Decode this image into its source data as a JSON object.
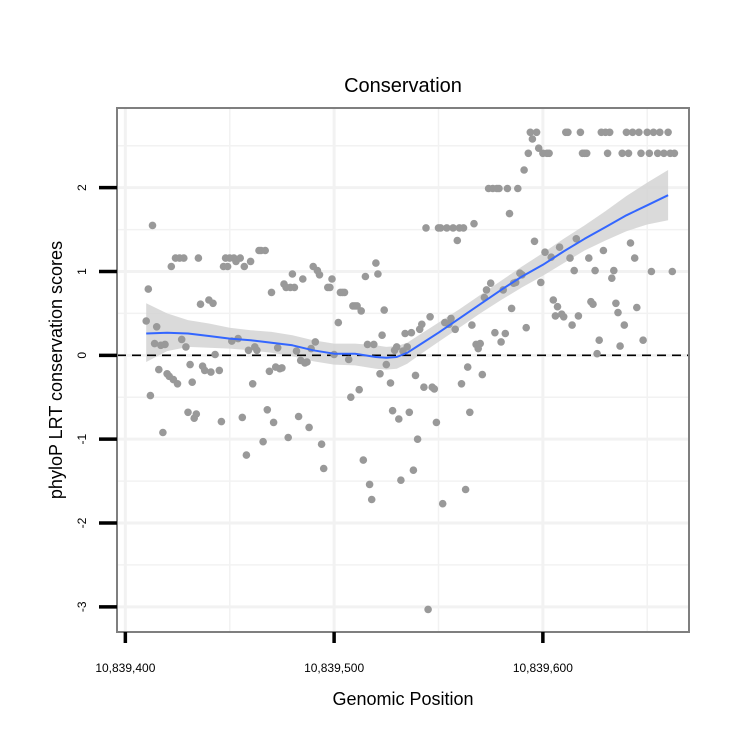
{
  "chart_data": {
    "type": "scatter",
    "title": "Conservation",
    "xlabel": "Genomic Position",
    "ylabel": "phyloP LRT conservation scores",
    "xlim": [
      10839396,
      10839670
    ],
    "ylim": [
      -3.3,
      2.95
    ],
    "x_ticks": [
      10839400,
      10839500,
      10839600
    ],
    "x_tick_labels": [
      "10,839,400",
      "10,839,500",
      "10,839,600"
    ],
    "y_ticks": [
      -3,
      -2,
      -1,
      0,
      1,
      2
    ],
    "y_tick_labels": [
      "-3",
      "-2",
      "-1",
      "0",
      "1",
      "2"
    ],
    "grid": true,
    "reference_line": {
      "y": 0,
      "style": "dashed"
    },
    "colors": {
      "points": "#999999",
      "smooth": "#3366ff",
      "ribbon": "#d3d3d3",
      "frame": "#7f7f7f",
      "grid": "#f2f2f2",
      "refline": "#000000"
    },
    "points": [
      [
        10839410,
        0.41
      ],
      [
        10839411,
        0.79
      ],
      [
        10839412,
        -0.48
      ],
      [
        10839413,
        1.55
      ],
      [
        10839414,
        0.14
      ],
      [
        10839415,
        0.34
      ],
      [
        10839416,
        -0.17
      ],
      [
        10839417,
        0.12
      ],
      [
        10839418,
        -0.92
      ],
      [
        10839419,
        0.13
      ],
      [
        10839420,
        -0.22
      ],
      [
        10839421,
        -0.25
      ],
      [
        10839422,
        1.06
      ],
      [
        10839423,
        -0.29
      ],
      [
        10839424,
        1.16
      ],
      [
        10839425,
        -0.34
      ],
      [
        10839426,
        1.16
      ],
      [
        10839427,
        0.19
      ],
      [
        10839428,
        1.16
      ],
      [
        10839429,
        0.1
      ],
      [
        10839430,
        -0.68
      ],
      [
        10839431,
        -0.11
      ],
      [
        10839432,
        -0.32
      ],
      [
        10839433,
        -0.75
      ],
      [
        10839434,
        -0.7
      ],
      [
        10839435,
        1.16
      ],
      [
        10839436,
        0.61
      ],
      [
        10839437,
        -0.13
      ],
      [
        10839438,
        -0.18
      ],
      [
        10839440,
        0.66
      ],
      [
        10839441,
        -0.2
      ],
      [
        10839442,
        0.62
      ],
      [
        10839443,
        0.01
      ],
      [
        10839445,
        -0.18
      ],
      [
        10839446,
        -0.79
      ],
      [
        10839447,
        1.06
      ],
      [
        10839448,
        1.16
      ],
      [
        10839449,
        1.06
      ],
      [
        10839450,
        1.16
      ],
      [
        10839451,
        0.17
      ],
      [
        10839452,
        1.16
      ],
      [
        10839453,
        1.12
      ],
      [
        10839454,
        0.2
      ],
      [
        10839455,
        1.16
      ],
      [
        10839456,
        -0.74
      ],
      [
        10839457,
        1.06
      ],
      [
        10839458,
        -1.19
      ],
      [
        10839459,
        0.06
      ],
      [
        10839460,
        1.12
      ],
      [
        10839461,
        -0.34
      ],
      [
        10839462,
        0.1
      ],
      [
        10839463,
        0.06
      ],
      [
        10839464,
        1.25
      ],
      [
        10839465,
        1.25
      ],
      [
        10839466,
        -1.03
      ],
      [
        10839467,
        1.25
      ],
      [
        10839468,
        -0.65
      ],
      [
        10839469,
        -0.19
      ],
      [
        10839470,
        0.75
      ],
      [
        10839471,
        -0.8
      ],
      [
        10839472,
        -0.14
      ],
      [
        10839473,
        0.09
      ],
      [
        10839474,
        -0.16
      ],
      [
        10839475,
        -0.15
      ],
      [
        10839476,
        0.85
      ],
      [
        10839477,
        0.81
      ],
      [
        10839478,
        -0.98
      ],
      [
        10839479,
        0.81
      ],
      [
        10839480,
        0.97
      ],
      [
        10839481,
        0.81
      ],
      [
        10839482,
        0.05
      ],
      [
        10839483,
        -0.73
      ],
      [
        10839484,
        -0.06
      ],
      [
        10839485,
        0.91
      ],
      [
        10839486,
        -0.09
      ],
      [
        10839487,
        -0.08
      ],
      [
        10839488,
        -0.86
      ],
      [
        10839489,
        0.08
      ],
      [
        10839490,
        1.06
      ],
      [
        10839491,
        0.16
      ],
      [
        10839492,
        1.01
      ],
      [
        10839493,
        0.96
      ],
      [
        10839494,
        -1.06
      ],
      [
        10839495,
        -1.35
      ],
      [
        10839497,
        0.81
      ],
      [
        10839498,
        0.81
      ],
      [
        10839499,
        0.91
      ],
      [
        10839500,
        0.01
      ],
      [
        10839502,
        0.39
      ],
      [
        10839503,
        0.75
      ],
      [
        10839504,
        0.75
      ],
      [
        10839505,
        0.75
      ],
      [
        10839507,
        -0.05
      ],
      [
        10839508,
        -0.5
      ],
      [
        10839509,
        0.59
      ],
      [
        10839510,
        0.59
      ],
      [
        10839511,
        0.59
      ],
      [
        10839512,
        -0.41
      ],
      [
        10839513,
        0.53
      ],
      [
        10839514,
        -1.25
      ],
      [
        10839515,
        0.94
      ],
      [
        10839516,
        0.13
      ],
      [
        10839517,
        -1.54
      ],
      [
        10839518,
        -1.72
      ],
      [
        10839519,
        0.13
      ],
      [
        10839520,
        1.1
      ],
      [
        10839521,
        0.97
      ],
      [
        10839522,
        -0.22
      ],
      [
        10839523,
        0.24
      ],
      [
        10839524,
        0.54
      ],
      [
        10839525,
        -0.11
      ],
      [
        10839527,
        -0.33
      ],
      [
        10839528,
        -0.66
      ],
      [
        10839529,
        0.06
      ],
      [
        10839530,
        0.1
      ],
      [
        10839531,
        -0.76
      ],
      [
        10839532,
        -1.49
      ],
      [
        10839533,
        0.05
      ],
      [
        10839534,
        0.26
      ],
      [
        10839535,
        0.1
      ],
      [
        10839536,
        -0.68
      ],
      [
        10839537,
        0.27
      ],
      [
        10839538,
        -1.37
      ],
      [
        10839539,
        -0.24
      ],
      [
        10839540,
        -1.0
      ],
      [
        10839541,
        0.31
      ],
      [
        10839542,
        0.37
      ],
      [
        10839543,
        -0.38
      ],
      [
        10839544,
        1.52
      ],
      [
        10839545,
        -3.03
      ],
      [
        10839546,
        0.46
      ],
      [
        10839547,
        -0.38
      ],
      [
        10839548,
        -0.4
      ],
      [
        10839549,
        -0.8
      ],
      [
        10839550,
        1.52
      ],
      [
        10839551,
        1.52
      ],
      [
        10839552,
        -1.77
      ],
      [
        10839553,
        0.39
      ],
      [
        10839554,
        1.52
      ],
      [
        10839555,
        0.37
      ],
      [
        10839556,
        0.44
      ],
      [
        10839557,
        1.52
      ],
      [
        10839558,
        0.31
      ],
      [
        10839559,
        1.37
      ],
      [
        10839560,
        1.52
      ],
      [
        10839561,
        -0.34
      ],
      [
        10839562,
        1.52
      ],
      [
        10839563,
        -1.6
      ],
      [
        10839564,
        -0.14
      ],
      [
        10839565,
        -0.68
      ],
      [
        10839566,
        0.36
      ],
      [
        10839567,
        1.57
      ],
      [
        10839568,
        0.13
      ],
      [
        10839569,
        0.08
      ],
      [
        10839570,
        0.14
      ],
      [
        10839571,
        -0.23
      ],
      [
        10839572,
        0.69
      ],
      [
        10839573,
        0.78
      ],
      [
        10839574,
        1.99
      ],
      [
        10839575,
        0.86
      ],
      [
        10839576,
        1.99
      ],
      [
        10839577,
        0.27
      ],
      [
        10839578,
        1.99
      ],
      [
        10839579,
        1.99
      ],
      [
        10839580,
        0.16
      ],
      [
        10839581,
        0.78
      ],
      [
        10839582,
        0.26
      ],
      [
        10839583,
        1.99
      ],
      [
        10839584,
        1.69
      ],
      [
        10839585,
        0.56
      ],
      [
        10839586,
        0.86
      ],
      [
        10839587,
        0.87
      ],
      [
        10839588,
        1.99
      ],
      [
        10839589,
        0.98
      ],
      [
        10839590,
        0.96
      ],
      [
        10839591,
        2.21
      ],
      [
        10839592,
        0.33
      ],
      [
        10839593,
        2.41
      ],
      [
        10839594,
        2.66
      ],
      [
        10839595,
        2.58
      ],
      [
        10839596,
        1.36
      ],
      [
        10839597,
        2.66
      ],
      [
        10839598,
        2.47
      ],
      [
        10839599,
        0.87
      ],
      [
        10839600,
        2.41
      ],
      [
        10839601,
        1.23
      ],
      [
        10839602,
        2.41
      ],
      [
        10839603,
        2.41
      ],
      [
        10839604,
        1.17
      ],
      [
        10839605,
        0.66
      ],
      [
        10839606,
        0.47
      ],
      [
        10839607,
        0.58
      ],
      [
        10839608,
        1.29
      ],
      [
        10839609,
        0.49
      ],
      [
        10839610,
        0.46
      ],
      [
        10839611,
        2.66
      ],
      [
        10839612,
        2.66
      ],
      [
        10839613,
        1.16
      ],
      [
        10839614,
        0.36
      ],
      [
        10839615,
        1.01
      ],
      [
        10839616,
        1.39
      ],
      [
        10839617,
        0.47
      ],
      [
        10839618,
        2.66
      ],
      [
        10839619,
        2.41
      ],
      [
        10839620,
        2.41
      ],
      [
        10839621,
        2.41
      ],
      [
        10839622,
        1.16
      ],
      [
        10839623,
        0.64
      ],
      [
        10839624,
        0.61
      ],
      [
        10839625,
        1.01
      ],
      [
        10839626,
        0.02
      ],
      [
        10839627,
        0.18
      ],
      [
        10839628,
        2.66
      ],
      [
        10839629,
        1.25
      ],
      [
        10839630,
        2.66
      ],
      [
        10839631,
        2.41
      ],
      [
        10839632,
        2.66
      ],
      [
        10839633,
        0.92
      ],
      [
        10839634,
        1.01
      ],
      [
        10839635,
        0.62
      ],
      [
        10839636,
        0.51
      ],
      [
        10839637,
        0.11
      ],
      [
        10839638,
        2.41
      ],
      [
        10839639,
        0.36
      ],
      [
        10839640,
        2.66
      ],
      [
        10839641,
        2.41
      ],
      [
        10839642,
        1.34
      ],
      [
        10839643,
        2.66
      ],
      [
        10839644,
        1.16
      ],
      [
        10839645,
        0.57
      ],
      [
        10839646,
        2.66
      ],
      [
        10839647,
        2.41
      ],
      [
        10839648,
        0.18
      ],
      [
        10839650,
        2.66
      ],
      [
        10839651,
        2.41
      ],
      [
        10839652,
        1.0
      ],
      [
        10839653,
        2.66
      ],
      [
        10839655,
        2.41
      ],
      [
        10839656,
        2.66
      ],
      [
        10839658,
        2.41
      ],
      [
        10839660,
        2.66
      ],
      [
        10839661,
        2.41
      ],
      [
        10839662,
        1.0
      ],
      [
        10839663,
        2.41
      ]
    ],
    "smooth_fit": {
      "x": [
        10839410,
        10839420,
        10839430,
        10839440,
        10839450,
        10839460,
        10839470,
        10839480,
        10839490,
        10839500,
        10839510,
        10839520,
        10839525,
        10839530,
        10839535,
        10839540,
        10839550,
        10839560,
        10839570,
        10839580,
        10839590,
        10839600,
        10839610,
        10839620,
        10839630,
        10839640,
        10839650,
        10839660
      ],
      "y": [
        0.26,
        0.27,
        0.26,
        0.23,
        0.2,
        0.18,
        0.15,
        0.12,
        0.06,
        0.02,
        0.02,
        -0.02,
        -0.03,
        -0.02,
        0.03,
        0.11,
        0.27,
        0.44,
        0.61,
        0.78,
        0.94,
        1.08,
        1.24,
        1.39,
        1.53,
        1.67,
        1.79,
        1.91
      ],
      "lower": [
        -0.08,
        0.05,
        0.1,
        0.09,
        0.08,
        0.06,
        0.03,
        -0.01,
        -0.07,
        -0.11,
        -0.12,
        -0.16,
        -0.17,
        -0.16,
        -0.1,
        -0.01,
        0.16,
        0.33,
        0.5,
        0.66,
        0.81,
        0.95,
        1.1,
        1.25,
        1.37,
        1.48,
        1.56,
        1.61
      ],
      "upper": [
        0.62,
        0.5,
        0.42,
        0.38,
        0.33,
        0.3,
        0.28,
        0.24,
        0.18,
        0.14,
        0.14,
        0.12,
        0.1,
        0.11,
        0.15,
        0.23,
        0.39,
        0.55,
        0.72,
        0.89,
        1.06,
        1.22,
        1.39,
        1.55,
        1.72,
        1.9,
        2.06,
        2.21
      ]
    }
  }
}
